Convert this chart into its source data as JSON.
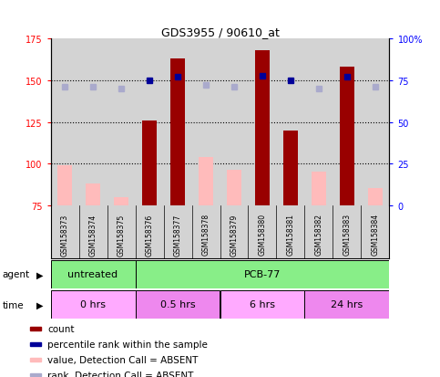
{
  "title": "GDS3955 / 90610_at",
  "samples": [
    "GSM158373",
    "GSM158374",
    "GSM158375",
    "GSM158376",
    "GSM158377",
    "GSM158378",
    "GSM158379",
    "GSM158380",
    "GSM158381",
    "GSM158382",
    "GSM158383",
    "GSM158384"
  ],
  "count_values": [
    null,
    null,
    null,
    126,
    163,
    null,
    null,
    168,
    120,
    null,
    158,
    null
  ],
  "count_absent": [
    99,
    88,
    80,
    null,
    null,
    104,
    96,
    null,
    null,
    95,
    null,
    85
  ],
  "rank_values": [
    null,
    null,
    null,
    75,
    77,
    null,
    null,
    78,
    75,
    null,
    77,
    null
  ],
  "rank_absent": [
    71,
    71,
    70,
    null,
    null,
    72,
    71,
    null,
    null,
    70,
    null,
    71
  ],
  "ylim_left": [
    75,
    175
  ],
  "ylim_right": [
    0,
    100
  ],
  "yticks_left": [
    75,
    100,
    125,
    150,
    175
  ],
  "yticks_right": [
    0,
    25,
    50,
    75,
    100
  ],
  "ytick_labels_right": [
    "0",
    "25",
    "50",
    "75",
    "100%"
  ],
  "bar_width": 0.5,
  "count_color": "#990000",
  "count_absent_color": "#ffbbbb",
  "rank_color": "#000099",
  "rank_absent_color": "#aaaacc",
  "bg_color": "#d3d3d3",
  "agent_groups": [
    {
      "label": "untreated",
      "start": 0,
      "end": 3,
      "color": "#88dd88"
    },
    {
      "label": "PCB-77",
      "start": 3,
      "end": 12,
      "color": "#88dd88"
    }
  ],
  "time_groups": [
    {
      "label": "0 hrs",
      "start": 0,
      "end": 3,
      "color": "#ffaaff"
    },
    {
      "label": "0.5 hrs",
      "start": 3,
      "end": 6,
      "color": "#ee88ee"
    },
    {
      "label": "6 hrs",
      "start": 6,
      "end": 9,
      "color": "#ffaaff"
    },
    {
      "label": "24 hrs",
      "start": 9,
      "end": 12,
      "color": "#ee88ee"
    }
  ],
  "legend_items": [
    {
      "color": "#990000",
      "label": "count"
    },
    {
      "color": "#000099",
      "label": "percentile rank within the sample"
    },
    {
      "color": "#ffbbbb",
      "label": "value, Detection Call = ABSENT"
    },
    {
      "color": "#aaaacc",
      "label": "rank, Detection Call = ABSENT"
    }
  ]
}
